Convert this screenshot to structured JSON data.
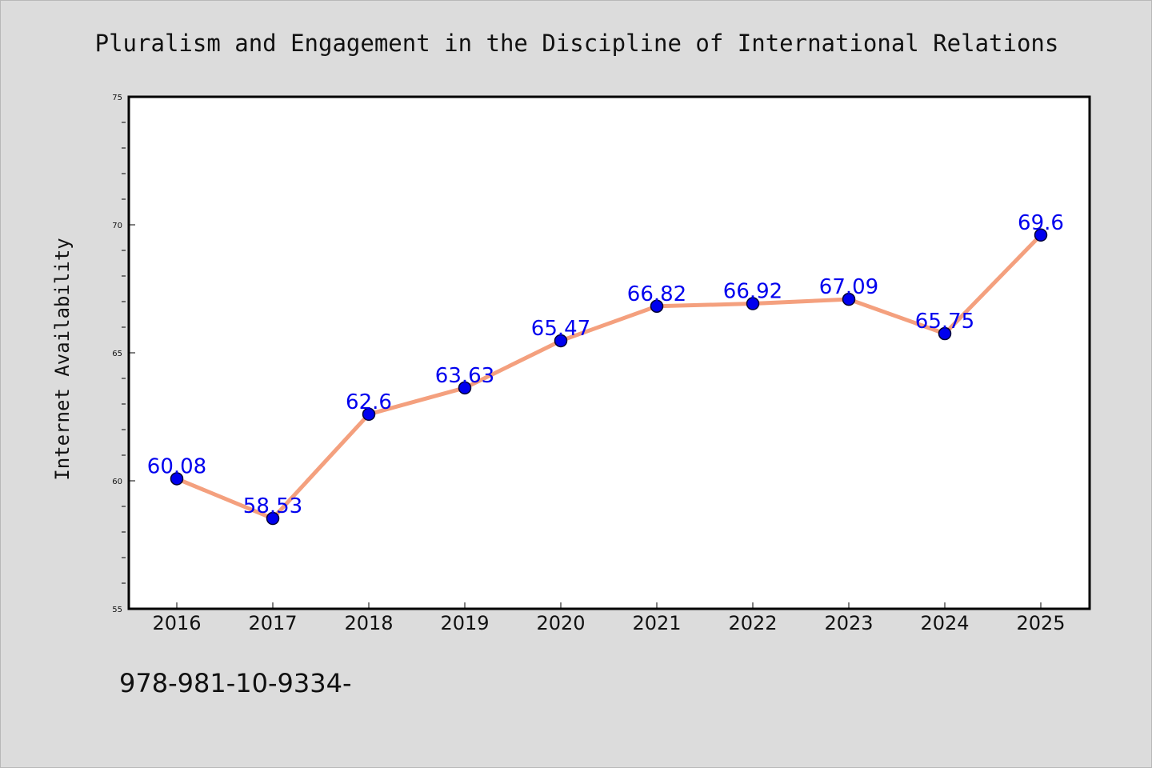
{
  "chart_data": {
    "type": "line",
    "title": "Pluralism and Engagement in the Discipline of International Relations",
    "ylabel": "Internet Availability",
    "xlabel": "",
    "categories": [
      "2016",
      "2017",
      "2018",
      "2019",
      "2020",
      "2021",
      "2022",
      "2023",
      "2024",
      "2025"
    ],
    "series": [
      {
        "values": [
          60.08,
          58.53,
          62.6,
          63.63,
          65.47,
          66.82,
          66.92,
          67.09,
          65.75,
          69.6
        ],
        "labels": [
          "60.08",
          "58.53",
          "62.6",
          "63.63",
          "65.47",
          "66.82",
          "66.92",
          "67.09",
          "65.75",
          "69.6"
        ]
      }
    ],
    "ylim": [
      55,
      75
    ],
    "yticks": [
      "55",
      "60",
      "65",
      "70",
      "75"
    ],
    "grid": false,
    "legend": "none",
    "colors": {
      "line": "#f4a07e",
      "marker": "#0000ee",
      "marker_edge": "#000033",
      "data_label": "#0000ee",
      "background": "#dcdcdc",
      "plot_area": "#ffffff"
    }
  },
  "footer": {
    "text": "978-981-10-9334-"
  }
}
